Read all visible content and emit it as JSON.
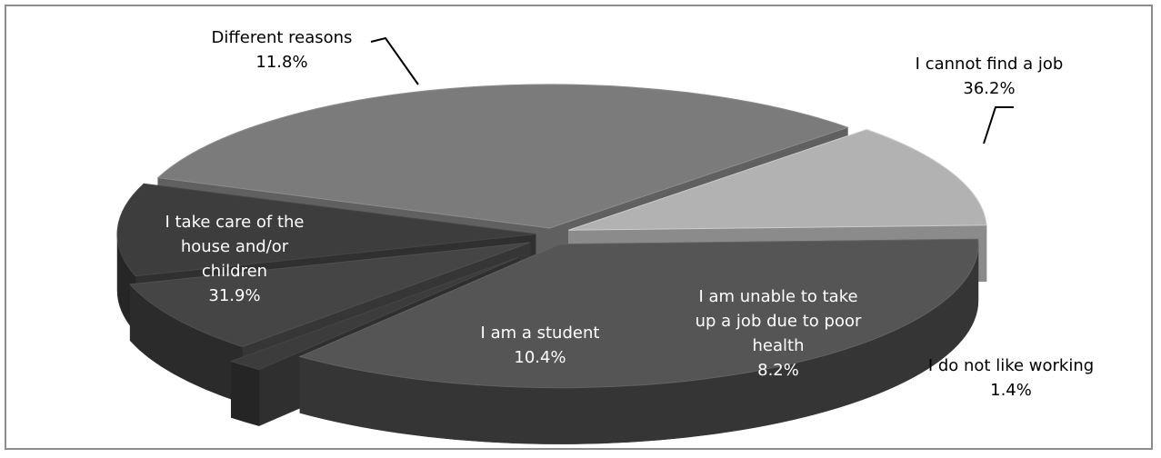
{
  "chart_data": {
    "type": "pie",
    "title": "",
    "three_d": true,
    "exploded": true,
    "slices": [
      {
        "label": "I cannot find a job",
        "value": 36.2,
        "value_label": "36.2%",
        "color": "#555555"
      },
      {
        "label": "I do not like working",
        "value": 1.4,
        "value_label": "1.4%",
        "color": "#3c3c3c"
      },
      {
        "label": "I am unable to take up a job due to poor health",
        "value": 8.2,
        "value_label": "8.2%",
        "color": "#454545"
      },
      {
        "label": "I am a student",
        "value": 10.4,
        "value_label": "10.4%",
        "color": "#3d3d3d"
      },
      {
        "label": "I take care of the house and/or children",
        "value": 31.9,
        "value_label": "31.9%",
        "color": "#7b7b7b"
      },
      {
        "label": "Different reasons",
        "value": 11.8,
        "value_label": "11.8%",
        "color": "#b2b2b2"
      }
    ]
  }
}
